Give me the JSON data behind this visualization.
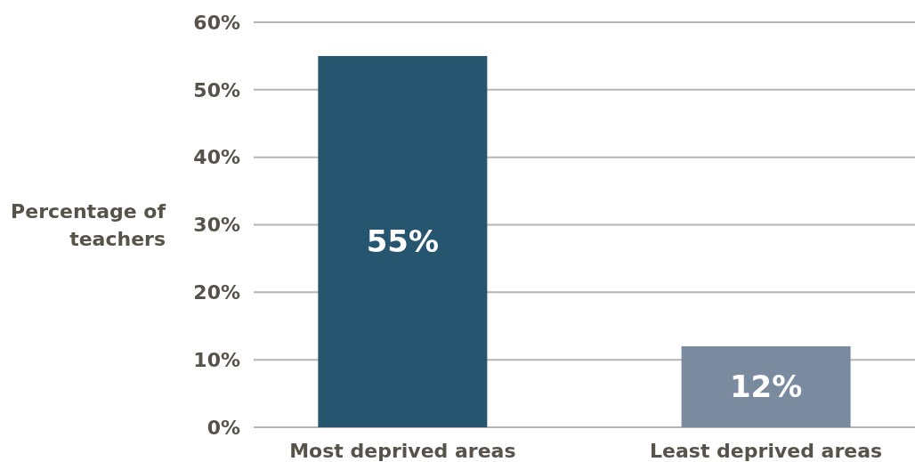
{
  "chart_data": {
    "type": "bar",
    "ylabel": "Percentage of teachers",
    "categories": [
      "Most deprived areas",
      "Least deprived areas"
    ],
    "values": [
      55,
      12
    ],
    "colors": [
      "#265570",
      "#7a8ba0"
    ],
    "value_labels": [
      "55%",
      "12%"
    ],
    "ylim": [
      0,
      60
    ],
    "yticks": [
      {
        "value": 0,
        "label": "0%"
      },
      {
        "value": 10,
        "label": "10%"
      },
      {
        "value": 20,
        "label": "20%"
      },
      {
        "value": 30,
        "label": "30%"
      },
      {
        "value": 40,
        "label": "40%"
      },
      {
        "value": 50,
        "label": "50%"
      },
      {
        "value": 60,
        "label": "60%"
      }
    ],
    "grid": "y"
  }
}
